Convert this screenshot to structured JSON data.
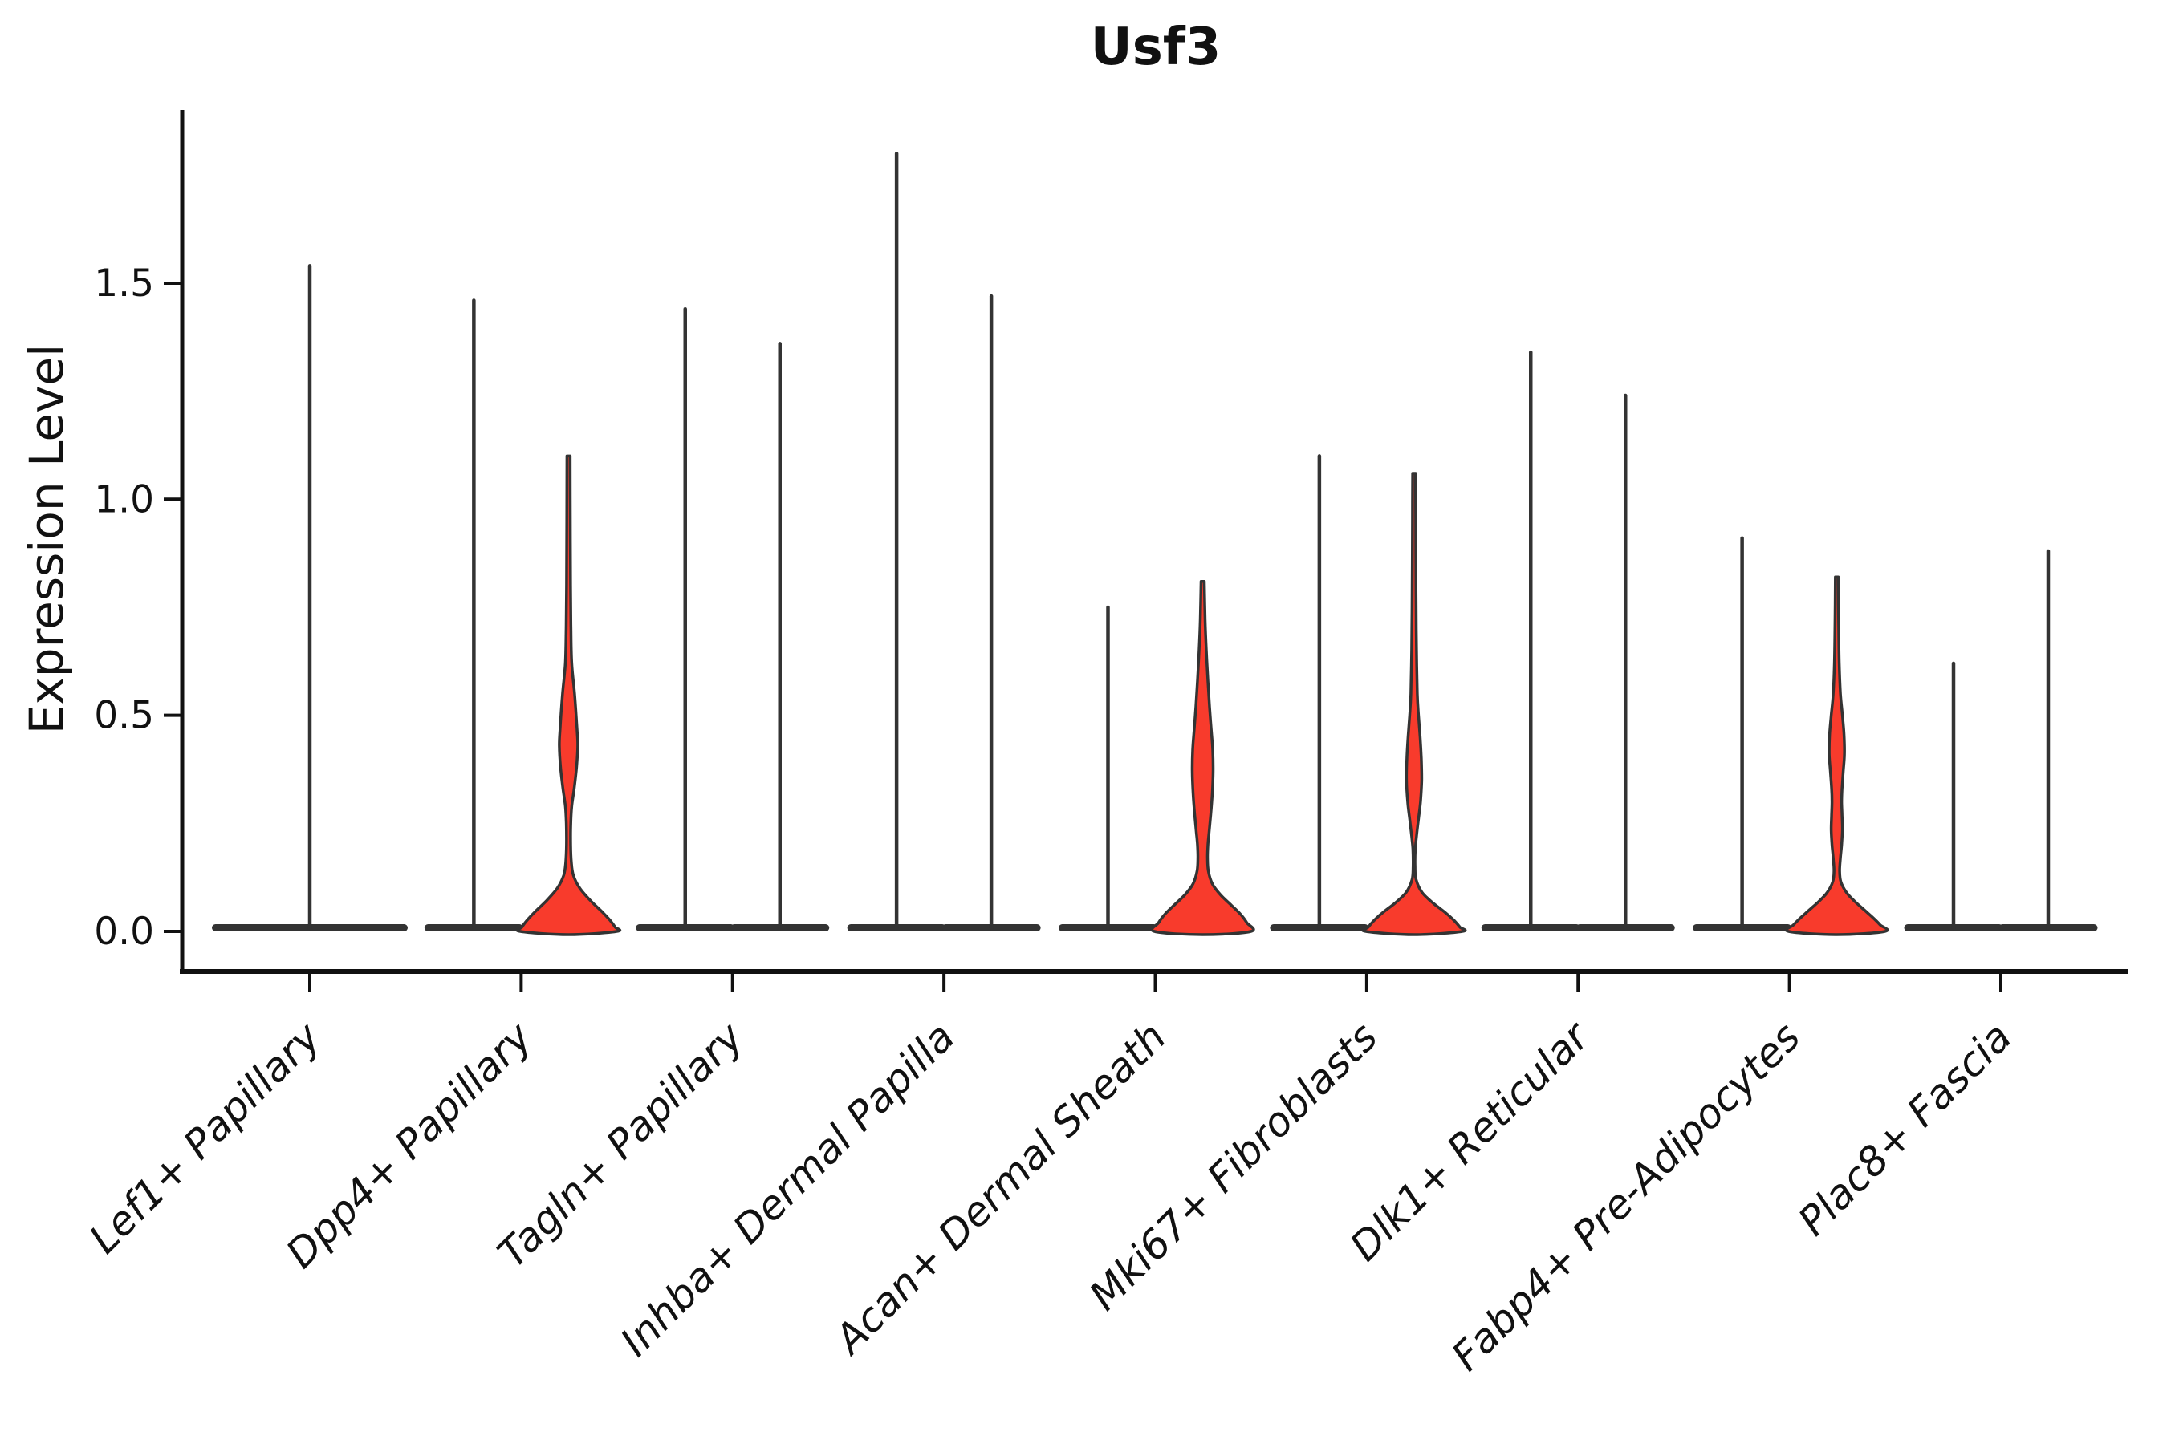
{
  "chart_data": {
    "type": "violin",
    "title": "Usf3",
    "ylabel": "Expression Level",
    "xlabel": "",
    "yticks": [
      {
        "value": 0.0,
        "label": "0.0"
      },
      {
        "value": 0.5,
        "label": "0.5"
      },
      {
        "value": 1.0,
        "label": "1.0"
      },
      {
        "value": 1.5,
        "label": "1.5"
      }
    ],
    "ylim": [
      -0.09,
      1.91
    ],
    "grid": false,
    "legend": "none",
    "categories": [
      "Lef1+ Papillary",
      "Dpp4+ Papillary",
      "Tagln+ Papillary",
      "Inhba+ Dermal Papilla",
      "Acan+ Dermal Sheath",
      "Mki67+ Fibroblasts",
      "Dlk1+ Reticular",
      "Fabp4+ Pre-Adipocytes",
      "Plac8+ Fascia"
    ],
    "groups_per_category": 2,
    "colors": {
      "outline": "#333333",
      "axis": "#111111",
      "red_fill": "#f83b2c",
      "background": "#ffffff"
    },
    "violins": [
      {
        "cat": 0,
        "side": 0,
        "kind": "spike",
        "max": 1.54,
        "pancake": "full"
      },
      {
        "cat": 1,
        "side": -1,
        "kind": "spike",
        "max": 1.46,
        "pancake": "half"
      },
      {
        "cat": 1,
        "side": 1,
        "kind": "red",
        "max": 1.1,
        "pancake": "none",
        "profile": [
          [
            1.1,
            2
          ],
          [
            0.95,
            2.2
          ],
          [
            0.8,
            2.5
          ],
          [
            0.7,
            3
          ],
          [
            0.62,
            4
          ],
          [
            0.55,
            7.5
          ],
          [
            0.47,
            10.5
          ],
          [
            0.43,
            11.5
          ],
          [
            0.38,
            10
          ],
          [
            0.33,
            7
          ],
          [
            0.29,
            4
          ],
          [
            0.25,
            2.8
          ],
          [
            0.2,
            2.6
          ],
          [
            0.16,
            3.5
          ],
          [
            0.13,
            6
          ],
          [
            0.1,
            14
          ],
          [
            0.07,
            28
          ],
          [
            0.045,
            42
          ],
          [
            0.025,
            52
          ],
          [
            0.01,
            58
          ],
          [
            0.0,
            60
          ]
        ]
      },
      {
        "cat": 2,
        "side": -1,
        "kind": "spike",
        "max": 1.44,
        "pancake": "half"
      },
      {
        "cat": 2,
        "side": 1,
        "kind": "spike",
        "max": 1.36,
        "pancake": "half"
      },
      {
        "cat": 3,
        "side": -1,
        "kind": "spike",
        "max": 1.8,
        "pancake": "half"
      },
      {
        "cat": 3,
        "side": 1,
        "kind": "spike",
        "max": 1.47,
        "pancake": "half"
      },
      {
        "cat": 4,
        "side": -1,
        "kind": "spike",
        "max": 0.75,
        "pancake": "half"
      },
      {
        "cat": 4,
        "side": 1,
        "kind": "red",
        "max": 0.81,
        "pancake": "none",
        "profile": [
          [
            0.81,
            2
          ],
          [
            0.72,
            3
          ],
          [
            0.65,
            4.5
          ],
          [
            0.58,
            6.5
          ],
          [
            0.52,
            8.5
          ],
          [
            0.47,
            10.5
          ],
          [
            0.42,
            12.5
          ],
          [
            0.37,
            13
          ],
          [
            0.32,
            12
          ],
          [
            0.27,
            10
          ],
          [
            0.23,
            8
          ],
          [
            0.2,
            6.5
          ],
          [
            0.17,
            6
          ],
          [
            0.14,
            7
          ],
          [
            0.11,
            12
          ],
          [
            0.085,
            22
          ],
          [
            0.06,
            36
          ],
          [
            0.04,
            47
          ],
          [
            0.02,
            55
          ],
          [
            0.0,
            60
          ]
        ]
      },
      {
        "cat": 5,
        "side": -1,
        "kind": "spike",
        "max": 1.1,
        "pancake": "half"
      },
      {
        "cat": 5,
        "side": 1,
        "kind": "red",
        "max": 1.06,
        "pancake": "none",
        "profile": [
          [
            1.06,
            1.8
          ],
          [
            0.95,
            2
          ],
          [
            0.85,
            2.2
          ],
          [
            0.75,
            2.5
          ],
          [
            0.65,
            3
          ],
          [
            0.55,
            4
          ],
          [
            0.5,
            5.5
          ],
          [
            0.45,
            7.5
          ],
          [
            0.4,
            9
          ],
          [
            0.35,
            9.5
          ],
          [
            0.3,
            8
          ],
          [
            0.26,
            5.5
          ],
          [
            0.22,
            3
          ],
          [
            0.19,
            1.5
          ],
          [
            0.15,
            1.2
          ],
          [
            0.12,
            2.5
          ],
          [
            0.09,
            10
          ],
          [
            0.065,
            24
          ],
          [
            0.045,
            38
          ],
          [
            0.025,
            50
          ],
          [
            0.01,
            57
          ],
          [
            0.0,
            60
          ]
        ]
      },
      {
        "cat": 6,
        "side": -1,
        "kind": "spike",
        "max": 1.34,
        "pancake": "half"
      },
      {
        "cat": 6,
        "side": 1,
        "kind": "spike",
        "max": 1.24,
        "pancake": "half"
      },
      {
        "cat": 7,
        "side": -1,
        "kind": "spike",
        "max": 0.91,
        "pancake": "half"
      },
      {
        "cat": 7,
        "side": 1,
        "kind": "red",
        "max": 0.82,
        "pancake": "none",
        "profile": [
          [
            0.82,
            1.8
          ],
          [
            0.72,
            2.2
          ],
          [
            0.62,
            3
          ],
          [
            0.55,
            4.5
          ],
          [
            0.5,
            7
          ],
          [
            0.455,
            9
          ],
          [
            0.41,
            9.5
          ],
          [
            0.37,
            8
          ],
          [
            0.33,
            6.5
          ],
          [
            0.3,
            6
          ],
          [
            0.27,
            6.5
          ],
          [
            0.235,
            7
          ],
          [
            0.2,
            6
          ],
          [
            0.17,
            4.5
          ],
          [
            0.14,
            3.5
          ],
          [
            0.115,
            5
          ],
          [
            0.09,
            12
          ],
          [
            0.07,
            22
          ],
          [
            0.05,
            34
          ],
          [
            0.03,
            46
          ],
          [
            0.015,
            54
          ],
          [
            0.0,
            60
          ]
        ]
      },
      {
        "cat": 8,
        "side": -1,
        "kind": "spike",
        "max": 0.62,
        "pancake": "half"
      },
      {
        "cat": 8,
        "side": 1,
        "kind": "spike",
        "max": 0.88,
        "pancake": "half"
      }
    ]
  }
}
